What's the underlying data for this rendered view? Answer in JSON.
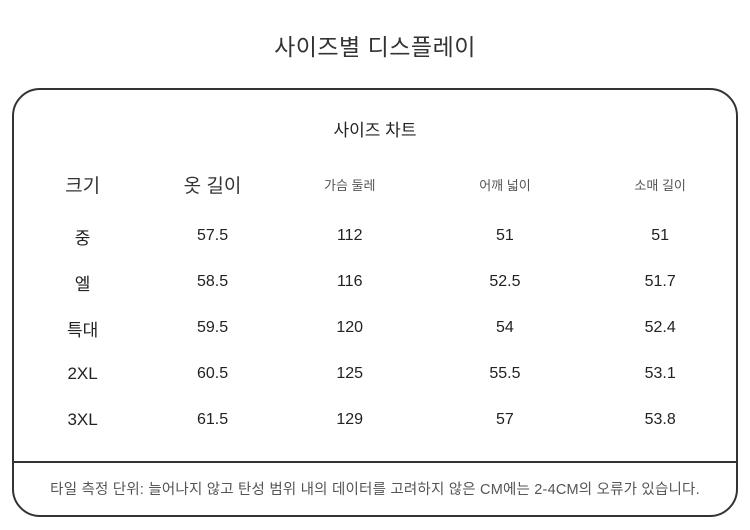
{
  "page": {
    "title": "사이즈별 디스플레이"
  },
  "size_chart": {
    "heading": "사이즈 차트",
    "columns": [
      {
        "label": "크기"
      },
      {
        "label": "옷 길이"
      },
      {
        "label": "가슴 둘레"
      },
      {
        "label": "어깨 넓이"
      },
      {
        "label": "소매 길이"
      }
    ],
    "rows": [
      {
        "size": "중",
        "values": [
          "57.5",
          "112",
          "51",
          "51"
        ]
      },
      {
        "size": "엘",
        "values": [
          "58.5",
          "116",
          "52.5",
          "51.7"
        ]
      },
      {
        "size": "특대",
        "values": [
          "59.5",
          "120",
          "54",
          "52.4"
        ]
      },
      {
        "size": "2XL",
        "values": [
          "60.5",
          "125",
          "55.5",
          "53.1"
        ]
      },
      {
        "size": "3XL",
        "values": [
          "61.5",
          "129",
          "57",
          "53.8"
        ]
      }
    ],
    "footnote": "타일 측정 단위: 늘어나지 않고 탄성 범위 내의 데이터를 고려하지 않은 CM에는 2-4CM의 오류가 있습니다.",
    "colors": {
      "border": "#333333",
      "text_primary": "#222222",
      "text_secondary": "#555555"
    }
  }
}
